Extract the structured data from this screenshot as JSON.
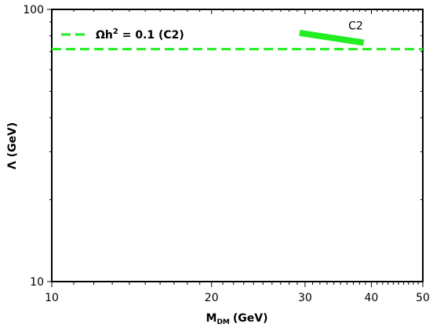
{
  "chart_data": {
    "type": "line",
    "xlabel": "M",
    "xlabel_sub": "DM",
    "xlabel_unit": "(GeV)",
    "ylabel": "Λ (GeV)",
    "xscale": "log",
    "yscale": "log",
    "xlim": [
      10,
      50
    ],
    "ylim": [
      10,
      100
    ],
    "x_major_ticks": [
      10,
      20,
      30,
      40,
      50
    ],
    "x_tick_labels": [
      "10",
      "20",
      "30",
      "40",
      "50"
    ],
    "x_minor_ticks": [
      11,
      12,
      13,
      14,
      15,
      16,
      17,
      18,
      19,
      21,
      22,
      23,
      24,
      25,
      26,
      27,
      28,
      29,
      31,
      32,
      33,
      34,
      35,
      36,
      37,
      38,
      39,
      41,
      42,
      43,
      44,
      45,
      46,
      47,
      48,
      49
    ],
    "y_major_ticks": [
      10,
      100
    ],
    "y_tick_labels": [
      "10",
      "100"
    ],
    "y_minor_ticks": [
      20,
      30,
      40,
      50,
      60,
      70,
      80,
      90
    ],
    "grid": false,
    "legend_position": "top-left",
    "series": [
      {
        "name": "Ωh² = 0.1 (C2)",
        "legend_base": "Ωh",
        "legend_sup": "2",
        "legend_tail": " = 0.1 (C2)",
        "style": "dashed",
        "color": "#22ee22",
        "x": [
          10,
          50
        ],
        "y": [
          71.5,
          71.5
        ]
      },
      {
        "name": "C2",
        "style": "solid-thick",
        "color": "#22ee22",
        "x": [
          29.3,
          38.7
        ],
        "y": [
          82,
          75.5
        ]
      }
    ],
    "annotations": [
      {
        "text": "C2",
        "x": 36.2,
        "y": 84.5
      }
    ]
  }
}
